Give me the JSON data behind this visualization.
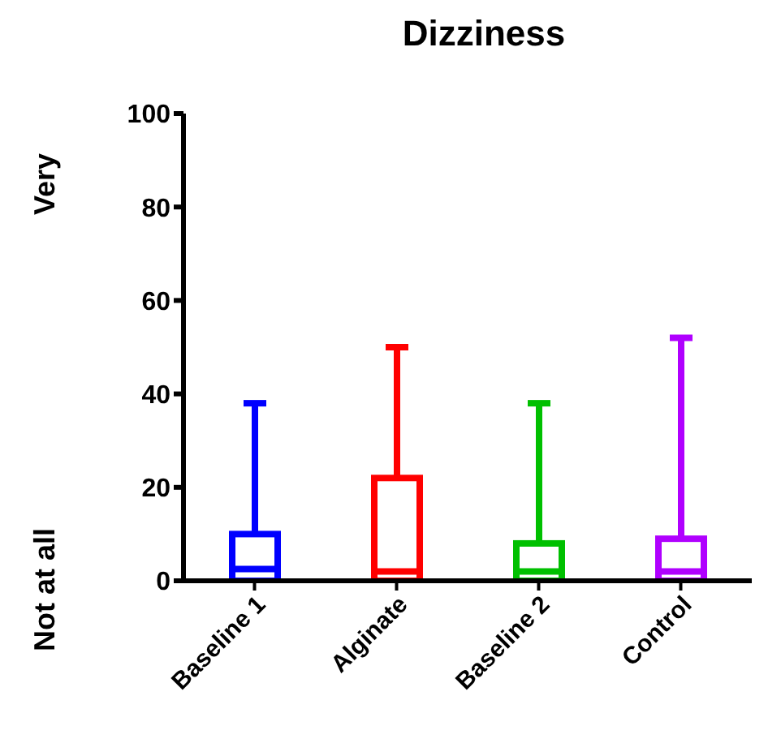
{
  "chart_data": {
    "type": "box",
    "title": "Dizziness",
    "categories": [
      "Baseline 1",
      "Alginate",
      "Baseline 2",
      "Control"
    ],
    "colors": [
      "#0000ff",
      "#ff0000",
      "#00c000",
      "#b000ff"
    ],
    "boxes": [
      {
        "low": 0,
        "q1": 0,
        "median": 2.5,
        "q3": 10,
        "high": 38
      },
      {
        "low": 0,
        "q1": 0,
        "median": 2,
        "q3": 22,
        "high": 50
      },
      {
        "low": 0,
        "q1": 0,
        "median": 2,
        "q3": 8,
        "high": 38
      },
      {
        "low": 0,
        "q1": 0,
        "median": 2,
        "q3": 9,
        "high": 52
      }
    ],
    "ylim": [
      0,
      100
    ],
    "yticks": [
      0,
      20,
      40,
      60,
      80,
      100
    ],
    "annotations": [
      "Very",
      "Not at all"
    ]
  }
}
